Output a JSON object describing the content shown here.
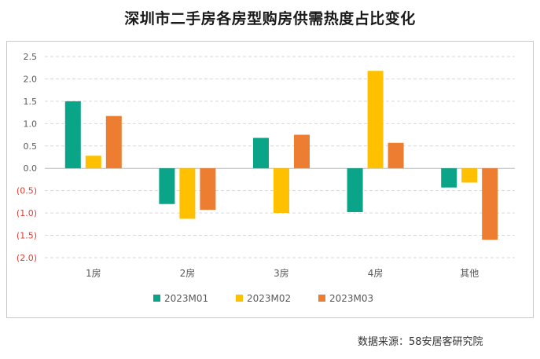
{
  "title": "深圳市二手房各房型购房供需热度占比变化",
  "source": "数据来源：58安居客研究院",
  "colors": {
    "positive_tick": "#595959",
    "negative_tick": "#e03c31",
    "grid": "#d9d9d9"
  },
  "chart_data": {
    "type": "bar",
    "categories": [
      "1房",
      "2房",
      "3房",
      "4房",
      "其他"
    ],
    "series": [
      {
        "name": "2023M01",
        "color": "#0aa488",
        "values": [
          1.5,
          -0.8,
          0.68,
          -0.98,
          -0.43
        ]
      },
      {
        "name": "2023M02",
        "color": "#ffc000",
        "values": [
          0.28,
          -1.13,
          -1.0,
          2.18,
          -0.32
        ]
      },
      {
        "name": "2023M03",
        "color": "#ed7d31",
        "values": [
          1.17,
          -0.93,
          0.75,
          0.57,
          -1.6
        ]
      }
    ],
    "ylim": [
      -2.0,
      2.5
    ],
    "yticks": [
      {
        "value": 2.5,
        "label": "2.5"
      },
      {
        "value": 2.0,
        "label": "2.0"
      },
      {
        "value": 1.5,
        "label": "1.5"
      },
      {
        "value": 1.0,
        "label": "1.0"
      },
      {
        "value": 0.5,
        "label": "0.5"
      },
      {
        "value": 0.0,
        "label": "0.0"
      },
      {
        "value": -0.5,
        "label": "(0.5)"
      },
      {
        "value": -1.0,
        "label": "(1.0)"
      },
      {
        "value": -1.5,
        "label": "(1.5)"
      },
      {
        "value": -2.0,
        "label": "(2.0)"
      }
    ],
    "grid": true,
    "legend_position": "bottom"
  }
}
